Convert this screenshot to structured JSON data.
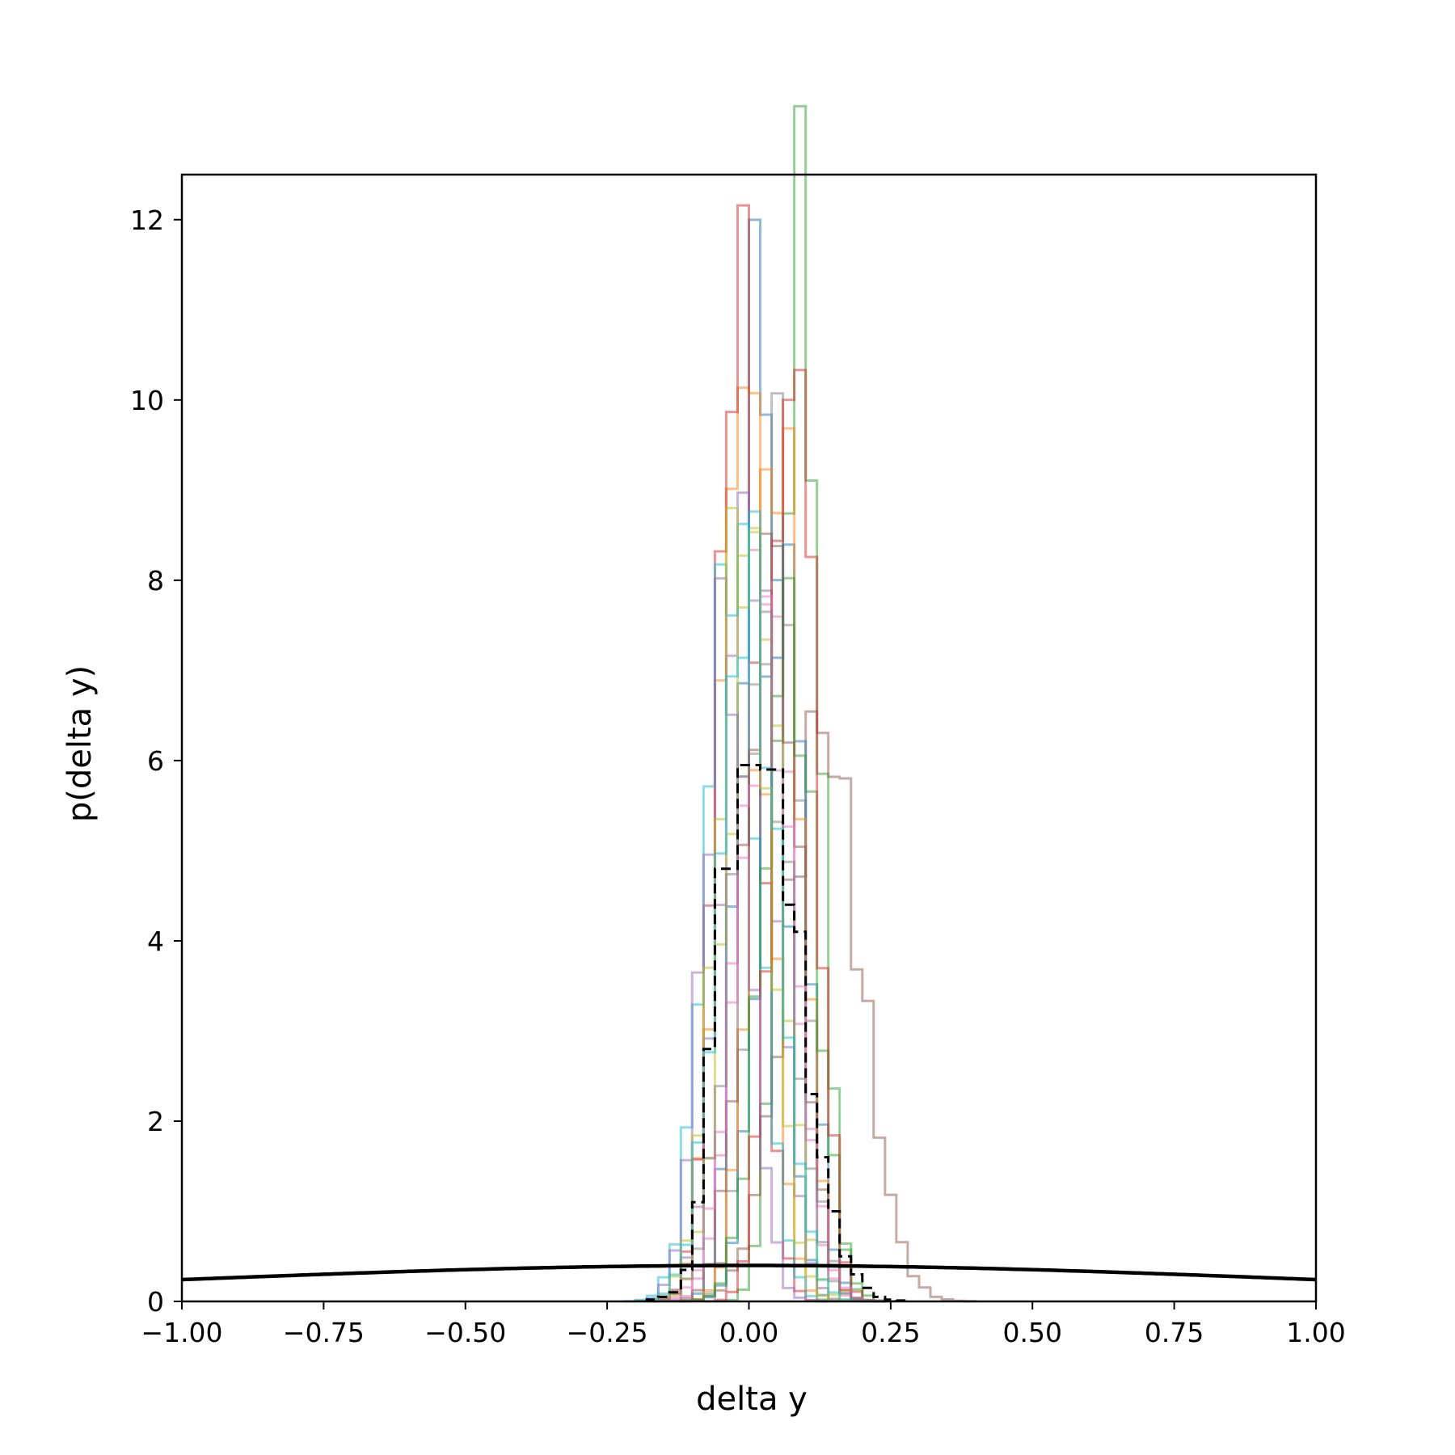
{
  "chart_data": {
    "type": "line",
    "title": "",
    "xlabel": "delta y",
    "ylabel": "p(delta y)",
    "xlim": [
      -1.0,
      1.0
    ],
    "ylim": [
      0,
      12.5
    ],
    "xticks": [
      -1.0,
      -0.75,
      -0.5,
      -0.25,
      0.0,
      0.25,
      0.5,
      0.75,
      1.0
    ],
    "xtick_labels": [
      "−1.00",
      "−0.75",
      "−0.50",
      "−0.25",
      "0.00",
      "0.25",
      "0.50",
      "0.75",
      "1.00"
    ],
    "yticks": [
      0,
      2,
      4,
      6,
      8,
      10,
      12
    ],
    "ytick_labels": [
      "0",
      "2",
      "4",
      "6",
      "8",
      "10",
      "12"
    ],
    "grid": false,
    "legend": "none",
    "histograms": [
      {
        "color": "#1f77b4",
        "center": 0.02,
        "sd": 0.035,
        "peak": 11.2
      },
      {
        "color": "#ff7f0e",
        "center": -0.01,
        "sd": 0.04,
        "peak": 10.5
      },
      {
        "color": "#2ca02c",
        "center": 0.09,
        "sd": 0.033,
        "peak": 11.9
      },
      {
        "color": "#d62728",
        "center": -0.02,
        "sd": 0.036,
        "peak": 11.3
      },
      {
        "color": "#9467bd",
        "center": 0.0,
        "sd": 0.045,
        "peak": 8.8
      },
      {
        "color": "#8c564b",
        "center": 0.13,
        "sd": 0.065,
        "peak": 6.4
      },
      {
        "color": "#e377c2",
        "center": 0.03,
        "sd": 0.045,
        "peak": 8.3
      },
      {
        "color": "#7f7f7f",
        "center": 0.05,
        "sd": 0.04,
        "peak": 9.1
      },
      {
        "color": "#bcbd22",
        "center": 0.01,
        "sd": 0.045,
        "peak": 8.6
      },
      {
        "color": "#17becf",
        "center": -0.03,
        "sd": 0.045,
        "peak": 8.5
      },
      {
        "color": "#1f77b4",
        "center": 0.06,
        "sd": 0.04,
        "peak": 8.2
      },
      {
        "color": "#ff7f0e",
        "center": 0.05,
        "sd": 0.04,
        "peak": 9.8
      },
      {
        "color": "#2ca02c",
        "center": 0.07,
        "sd": 0.045,
        "peak": 7.5
      },
      {
        "color": "#d62728",
        "center": 0.08,
        "sd": 0.036,
        "peak": 10.9
      },
      {
        "color": "#9467bd",
        "center": -0.04,
        "sd": 0.04,
        "peak": 7.4
      },
      {
        "color": "#8c564b",
        "center": 0.04,
        "sd": 0.045,
        "peak": 8.4
      },
      {
        "color": "#e377c2",
        "center": 0.03,
        "sd": 0.05,
        "peak": 7.0
      },
      {
        "color": "#7f7f7f",
        "center": 0.02,
        "sd": 0.05,
        "peak": 7.2
      },
      {
        "color": "#bcbd22",
        "center": -0.01,
        "sd": 0.045,
        "peak": 8.7
      },
      {
        "color": "#17becf",
        "center": 0.0,
        "sd": 0.05,
        "peak": 8.0
      }
    ],
    "aggregate_histogram": {
      "style": "dashed",
      "color": "#000000",
      "bin_edges": [
        -0.18,
        -0.16,
        -0.14,
        -0.12,
        -0.1,
        -0.08,
        -0.06,
        -0.04,
        -0.02,
        0.0,
        0.02,
        0.04,
        0.06,
        0.08,
        0.1,
        0.12,
        0.14,
        0.16,
        0.18,
        0.2,
        0.22,
        0.24,
        0.26,
        0.28
      ],
      "densities": [
        0.02,
        0.05,
        0.1,
        0.35,
        1.1,
        2.8,
        4.8,
        4.8,
        5.95,
        5.95,
        5.9,
        5.9,
        4.4,
        4.1,
        2.3,
        1.6,
        1.0,
        0.5,
        0.3,
        0.15,
        0.05,
        0.02,
        0.01
      ]
    },
    "gaussian_prior": {
      "color": "#000000",
      "mean": 0.0,
      "sd": 1.0
    }
  }
}
